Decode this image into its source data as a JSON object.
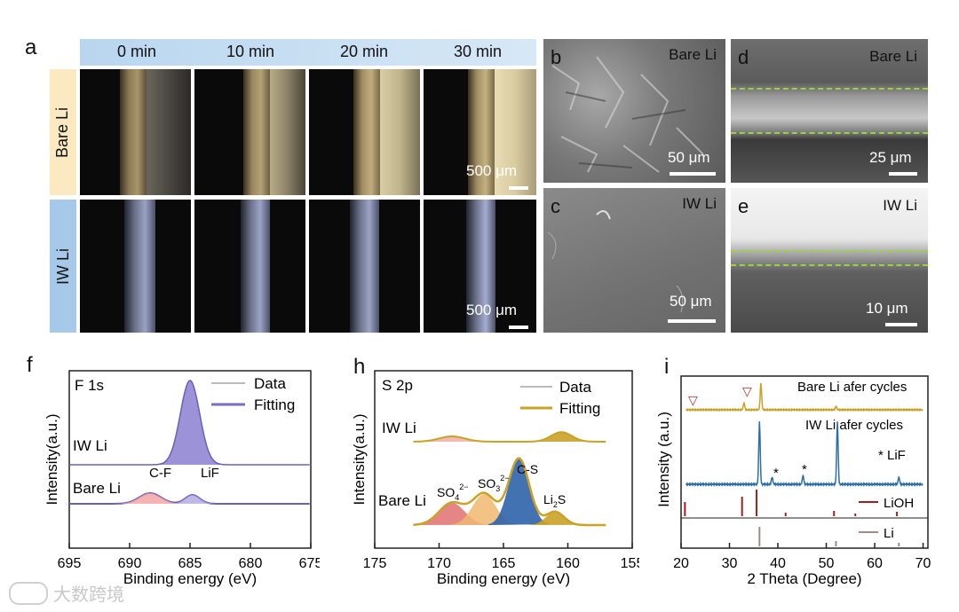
{
  "panel_a": {
    "label": "a",
    "times": [
      "0 min",
      "10 min",
      "20 min",
      "30 min"
    ],
    "rows": [
      "Bare Li",
      "IW Li"
    ],
    "scale": "500 μm"
  },
  "panel_b": {
    "label": "b",
    "title": "Bare Li",
    "scale": "50 μm"
  },
  "panel_c": {
    "label": "c",
    "title": "IW Li",
    "scale": "50 μm"
  },
  "panel_d": {
    "label": "d",
    "title": "Bare Li",
    "scale": "25 μm"
  },
  "panel_e": {
    "label": "e",
    "title": "IW Li",
    "scale": "10 μm"
  },
  "watermark": "大数跨境",
  "chart_data": [
    {
      "panel": "f",
      "type": "line",
      "title": "F 1s",
      "xlabel": "Binding energy (eV)",
      "ylabel": "Intensity(a.u.)",
      "xlim": [
        695,
        675
      ],
      "xticks": [
        "695",
        "690",
        "685",
        "680",
        "675"
      ],
      "legend": [
        "Data",
        "Fitting"
      ],
      "legend_position": "top-right",
      "series": [
        {
          "name": "IW Li",
          "peaks": [
            {
              "center": 685.0,
              "height": 0.95
            }
          ]
        },
        {
          "name": "Bare Li",
          "peaks": [
            {
              "center": 688.3,
              "height": 0.12,
              "label": "C-F"
            },
            {
              "center": 684.8,
              "height": 0.1,
              "label": "LiF"
            }
          ]
        }
      ],
      "annotations": [
        "IW Li",
        "Bare Li",
        "C-F",
        "LiF"
      ]
    },
    {
      "panel": "h",
      "type": "line",
      "title": "S 2p",
      "xlabel": "Binding energy (eV)",
      "ylabel": "Intensity(a.u.)",
      "xlim": [
        175,
        155
      ],
      "xticks": [
        "175",
        "170",
        "165",
        "160",
        "155"
      ],
      "legend": [
        "Data",
        "Fitting"
      ],
      "legend_position": "top-right",
      "series": [
        {
          "name": "IW Li",
          "peaks": [
            {
              "center": 169.0,
              "height": 0.1
            },
            {
              "center": 160.5,
              "height": 0.18
            }
          ]
        },
        {
          "name": "Bare Li",
          "peaks": [
            {
              "center": 169.0,
              "height": 0.25,
              "label": "SO4"
            },
            {
              "center": 166.5,
              "height": 0.35,
              "label": "SO3"
            },
            {
              "center": 163.8,
              "height": 0.75,
              "label": "C-S"
            },
            {
              "center": 161.0,
              "height": 0.15,
              "label": "Li2S"
            }
          ]
        }
      ],
      "annotations": [
        "IW Li",
        "Bare Li",
        "C-S"
      ]
    },
    {
      "panel": "i",
      "type": "line",
      "xlabel": "2 Theta (Degree)",
      "ylabel": "Intensity (a.u.)",
      "xlim": [
        20,
        71
      ],
      "xticks": [
        "20",
        "30",
        "40",
        "50",
        "60",
        "70"
      ],
      "series": [
        {
          "name": "Bare Li afer cycles",
          "peaks": [
            33.0,
            36.5,
            52.0
          ]
        },
        {
          "name": "IW Li afer cycles",
          "peaks": [
            36.2,
            38.8,
            45.2,
            52.3,
            65.0
          ]
        },
        {
          "name": "LiOH",
          "ref_lines": [
            20.8,
            32.6,
            35.6,
            41.6,
            51.6,
            56.0,
            64.6
          ]
        },
        {
          "name": "Li",
          "ref_lines": [
            36.2,
            52.0,
            65.0
          ]
        }
      ],
      "annotations": [
        "Bare Li afer cycles",
        "IW Li afer cycles",
        "* LiF",
        "LiOH",
        "Li"
      ]
    }
  ]
}
